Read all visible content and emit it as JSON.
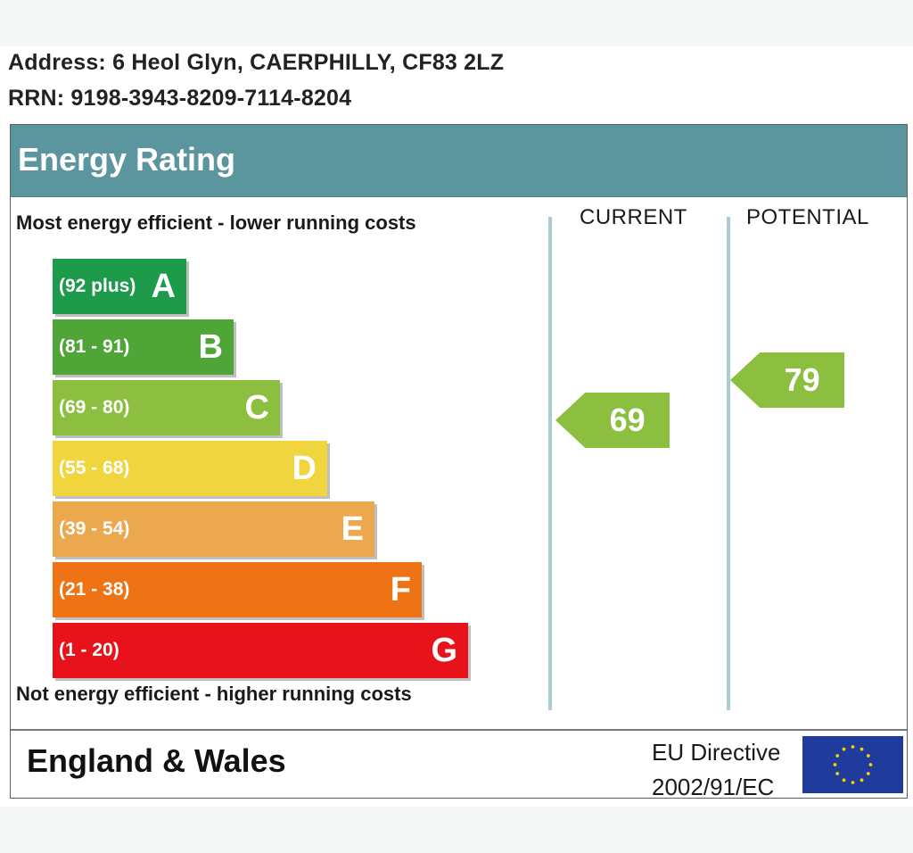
{
  "address_line": "Address: 6 Heol Glyn, CAERPHILLY, CF83 2LZ",
  "rrn_line": "RRN: 9198-3943-8209-7114-8204",
  "title": "Energy Rating",
  "top_caption": "Most energy efficient - lower running costs",
  "bottom_caption": "Not energy efficient - higher running costs",
  "columns": {
    "current": "CURRENT",
    "potential": "POTENTIAL"
  },
  "footer": {
    "region": "England & Wales",
    "directive_line1": "EU Directive",
    "directive_line2": "2002/91/EC"
  },
  "chart_data": {
    "type": "bar",
    "categories": [
      "A",
      "B",
      "C",
      "D",
      "E",
      "F",
      "G"
    ],
    "bands": [
      {
        "letter": "A",
        "range": "(92 plus)",
        "color": "#1e9a4b"
      },
      {
        "letter": "B",
        "range": "(81 - 91)",
        "color": "#4fa637"
      },
      {
        "letter": "C",
        "range": "(69 - 80)",
        "color": "#8cbf40"
      },
      {
        "letter": "D",
        "range": "(55 - 68)",
        "color": "#f1d53f"
      },
      {
        "letter": "E",
        "range": "(39 - 54)",
        "color": "#eca84e"
      },
      {
        "letter": "F",
        "range": "(21 - 38)",
        "color": "#ed7314"
      },
      {
        "letter": "G",
        "range": "(1 - 20)",
        "color": "#e8121b"
      }
    ],
    "current": {
      "value": 69,
      "band": "C",
      "color": "#8cbf40"
    },
    "potential": {
      "value": 79,
      "band": "C",
      "color": "#8cbf40"
    },
    "header_color": "#5b969e"
  }
}
